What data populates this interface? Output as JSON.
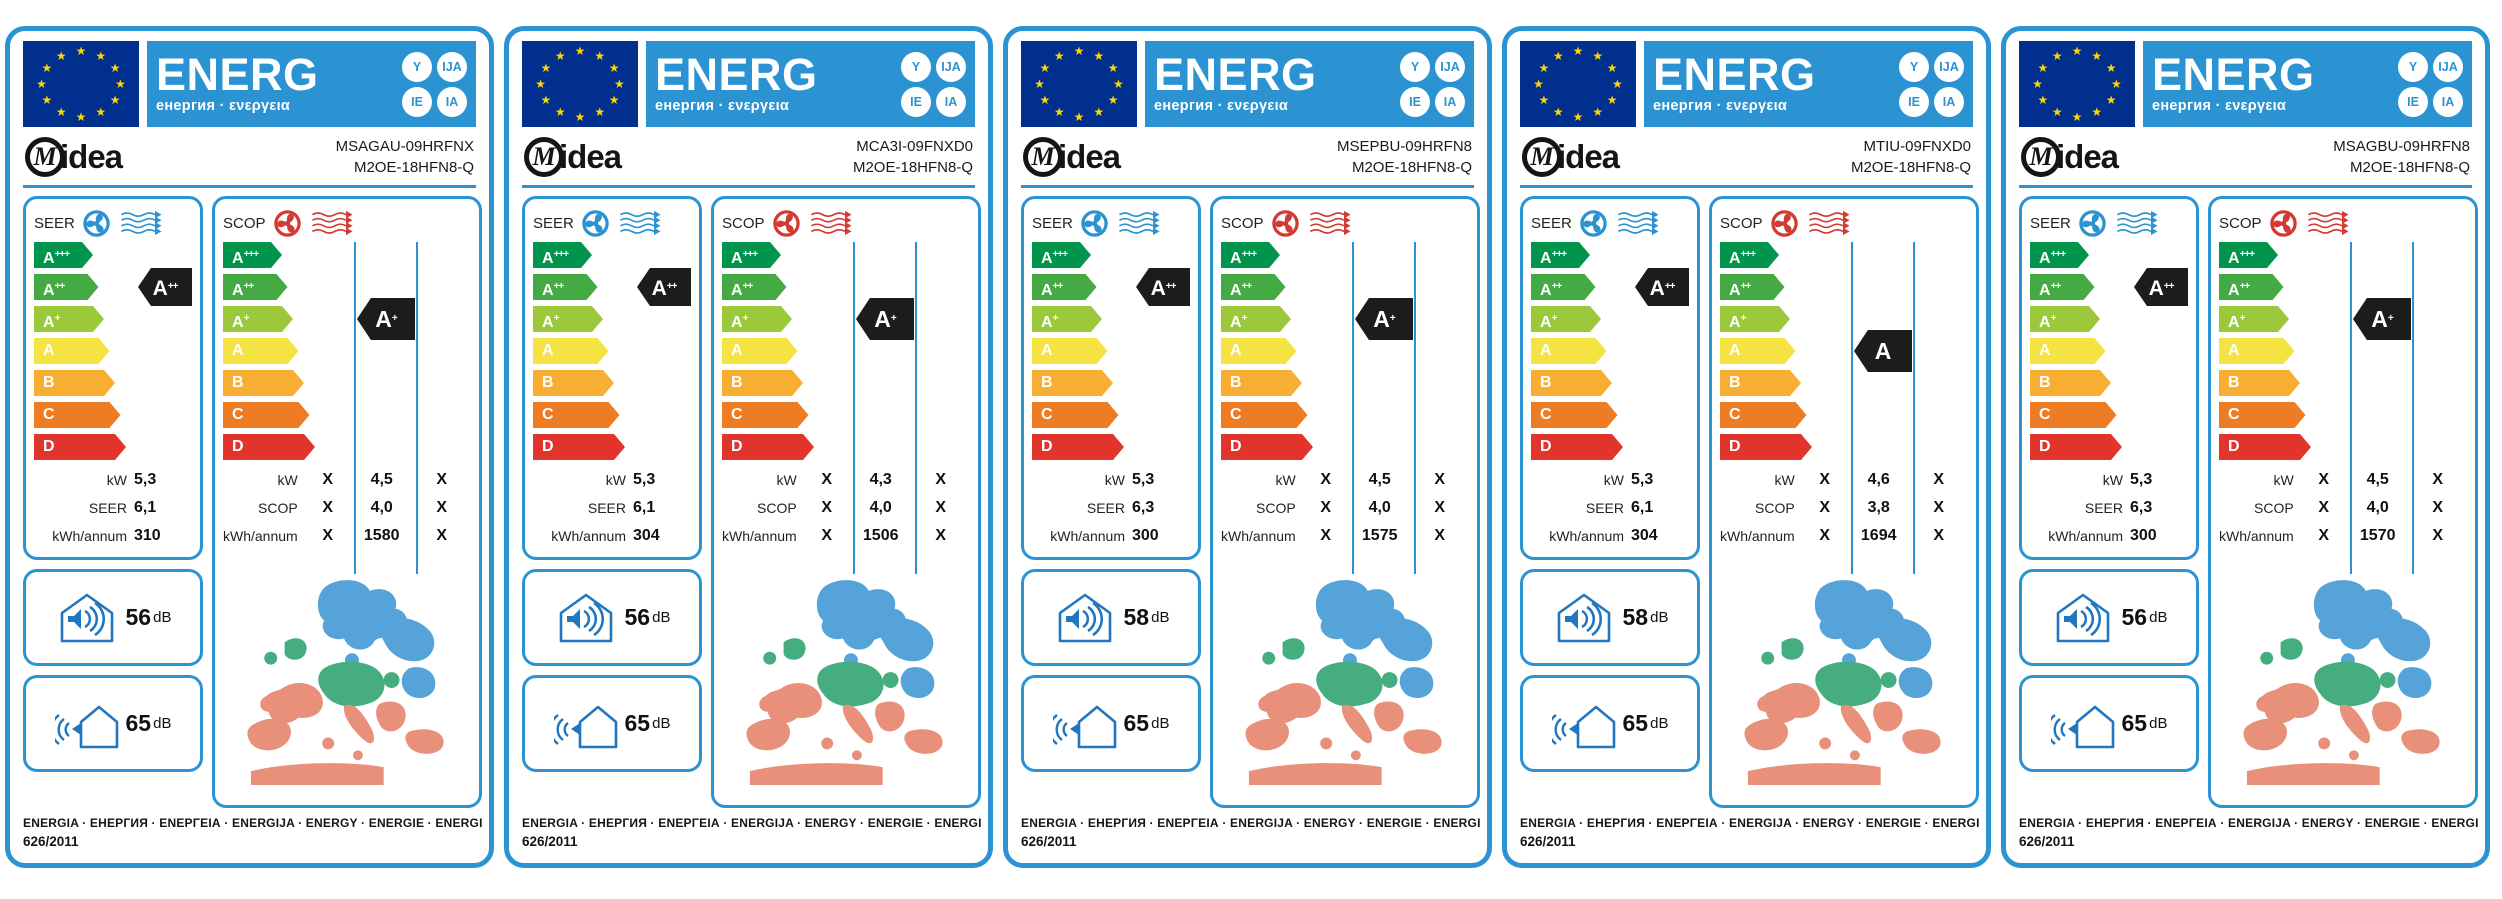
{
  "header": {
    "word": "ENERG",
    "subtitle": "енергия · ενεργεια",
    "suffixes": [
      "Y",
      "IJA",
      "IE",
      "IA"
    ]
  },
  "brand": {
    "logo_m": "M",
    "logo_rest": "idea"
  },
  "ratings": [
    {
      "label": "A+++",
      "color": "#00944d"
    },
    {
      "label": "A++",
      "color": "#45a944"
    },
    {
      "label": "A+",
      "color": "#9cc93b"
    },
    {
      "label": "A",
      "color": "#f4e342"
    },
    {
      "label": "B",
      "color": "#f7ae33"
    },
    {
      "label": "C",
      "color": "#ee7c25"
    },
    {
      "label": "D",
      "color": "#e0342c"
    }
  ],
  "panel_labels": {
    "seer": "SEER",
    "scop": "SCOP",
    "kw": "kW",
    "kwh": "kWh/annum"
  },
  "climate_colors": {
    "warmer": "#e8907a",
    "average": "#45ad80",
    "colder": "#55a3d8"
  },
  "accent_blue": "#2b93d1",
  "noise_unit": "dB",
  "footer": {
    "languages": "ENERGIA · ЕНЕРГИЯ · ΕΝΕΡΓΕΙΑ · ENERGIJA · ENERGY · ENERGIE · ENERGI",
    "regulation": "626/2011"
  },
  "labels": [
    {
      "model1": "MSAGAU-09HRFNX",
      "model2": "M2OE-18HFN8-Q",
      "seer": {
        "rating": "A++",
        "rating_row": 1,
        "kw": "5,3",
        "eff": "6,1",
        "kwh": "310"
      },
      "scop": {
        "rating": "A+",
        "rating_row": 2,
        "kw": [
          "X",
          "4,5",
          "X"
        ],
        "eff": [
          "X",
          "4,0",
          "X"
        ],
        "kwh": [
          "X",
          "1580",
          "X"
        ]
      },
      "noise_indoor": "56",
      "noise_outdoor": "65"
    },
    {
      "model1": "MCA3I-09FNXD0",
      "model2": "M2OE-18HFN8-Q",
      "seer": {
        "rating": "A++",
        "rating_row": 1,
        "kw": "5,3",
        "eff": "6,1",
        "kwh": "304"
      },
      "scop": {
        "rating": "A+",
        "rating_row": 2,
        "kw": [
          "X",
          "4,3",
          "X"
        ],
        "eff": [
          "X",
          "4,0",
          "X"
        ],
        "kwh": [
          "X",
          "1506",
          "X"
        ]
      },
      "noise_indoor": "56",
      "noise_outdoor": "65"
    },
    {
      "model1": "MSEPBU-09HRFN8",
      "model2": "M2OE-18HFN8-Q",
      "seer": {
        "rating": "A++",
        "rating_row": 1,
        "kw": "5,3",
        "eff": "6,3",
        "kwh": "300"
      },
      "scop": {
        "rating": "A+",
        "rating_row": 2,
        "kw": [
          "X",
          "4,5",
          "X"
        ],
        "eff": [
          "X",
          "4,0",
          "X"
        ],
        "kwh": [
          "X",
          "1575",
          "X"
        ]
      },
      "noise_indoor": "58",
      "noise_outdoor": "65"
    },
    {
      "model1": "MTIU-09FNXD0",
      "model2": "M2OE-18HFN8-Q",
      "seer": {
        "rating": "A++",
        "rating_row": 1,
        "kw": "5,3",
        "eff": "6,1",
        "kwh": "304"
      },
      "scop": {
        "rating": "A",
        "rating_row": 3,
        "kw": [
          "X",
          "4,6",
          "X"
        ],
        "eff": [
          "X",
          "3,8",
          "X"
        ],
        "kwh": [
          "X",
          "1694",
          "X"
        ]
      },
      "noise_indoor": "58",
      "noise_outdoor": "65"
    },
    {
      "model1": "MSAGBU-09HRFN8",
      "model2": "M2OE-18HFN8-Q",
      "seer": {
        "rating": "A++",
        "rating_row": 1,
        "kw": "5,3",
        "eff": "6,3",
        "kwh": "300"
      },
      "scop": {
        "rating": "A+",
        "rating_row": 2,
        "kw": [
          "X",
          "4,5",
          "X"
        ],
        "eff": [
          "X",
          "4,0",
          "X"
        ],
        "kwh": [
          "X",
          "1570",
          "X"
        ]
      },
      "noise_indoor": "56",
      "noise_outdoor": "65"
    }
  ]
}
